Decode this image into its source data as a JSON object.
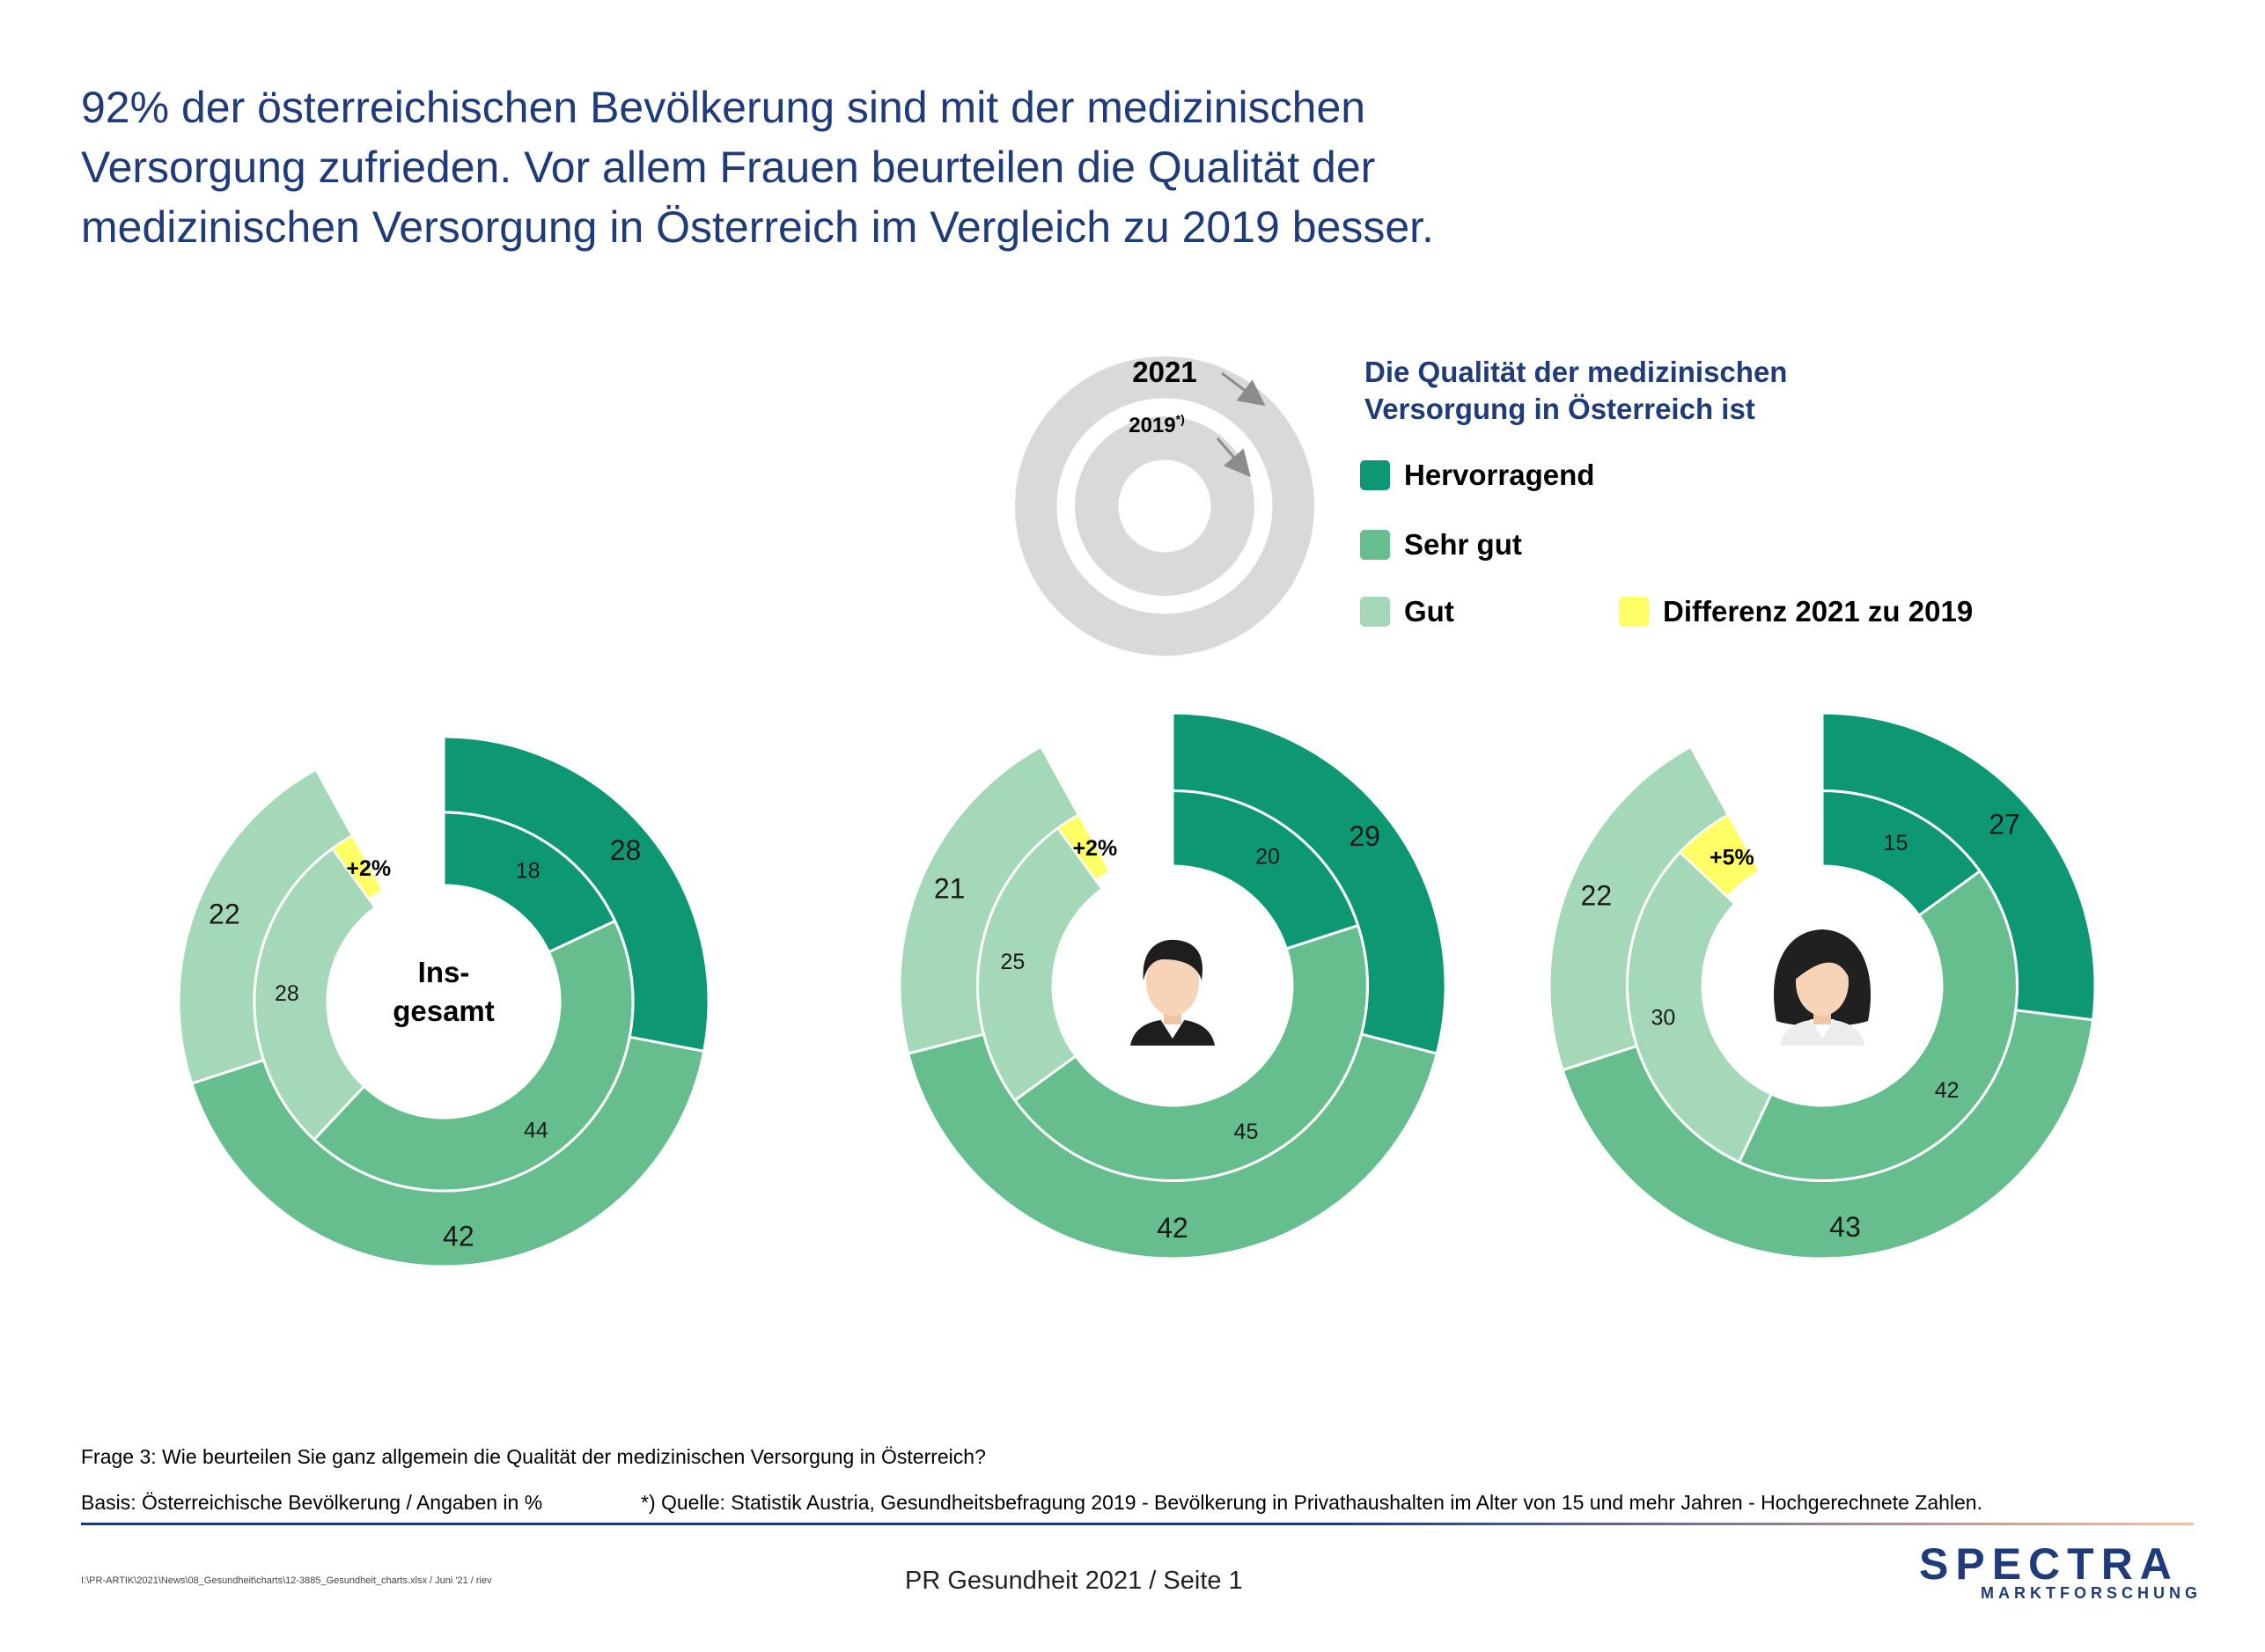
{
  "headline": {
    "line1": "92% der österreichischen Bevölkerung sind mit der medizinischen",
    "line2": "Versorgung zufrieden. Vor allem Frauen beurteilen die Qualität der",
    "line3": "medizinischen Versorgung in Österreich im Vergleich zu 2019 besser."
  },
  "key": {
    "outer_label": "2021",
    "inner_label": "2019",
    "inner_sup": "*)"
  },
  "legend": {
    "title_line1": "Die Qualität der medizinischen",
    "title_line2": "Versorgung in Österreich ist",
    "items": [
      {
        "label": "Hervorragend",
        "color": "#0d9873"
      },
      {
        "label": "Sehr gut",
        "color": "#66be8e"
      },
      {
        "label": "Gut",
        "color": "#a4d8b8"
      },
      {
        "label": "Differenz 2021 zu 2019",
        "color": "#ffff66"
      }
    ]
  },
  "colors": {
    "hervorragend": "#0d9873",
    "sehr_gut": "#66be8e",
    "gut": "#a4d8b8",
    "differenz": "#ffff66",
    "key_grey": "#d9d9d9",
    "navy": "#1f3b79"
  },
  "chart_data": [
    {
      "type": "donut",
      "center_label_line1": "Ins-",
      "center_label_line2": "gesamt",
      "categories": [
        "Hervorragend",
        "Sehr gut",
        "Gut"
      ],
      "series": [
        {
          "name": "2021",
          "values": [
            28,
            42,
            22
          ]
        },
        {
          "name": "2019",
          "values": [
            18,
            44,
            28
          ]
        }
      ],
      "difference_label": "+2%"
    },
    {
      "type": "donut",
      "center_icon": "male-avatar-icon",
      "categories": [
        "Hervorragend",
        "Sehr gut",
        "Gut"
      ],
      "series": [
        {
          "name": "2021",
          "values": [
            29,
            42,
            21
          ]
        },
        {
          "name": "2019",
          "values": [
            20,
            45,
            25
          ]
        }
      ],
      "difference_label": "+2%"
    },
    {
      "type": "donut",
      "center_icon": "female-avatar-icon",
      "categories": [
        "Hervorragend",
        "Sehr gut",
        "Gut"
      ],
      "series": [
        {
          "name": "2021",
          "values": [
            27,
            43,
            22
          ]
        },
        {
          "name": "2019",
          "values": [
            15,
            42,
            30
          ]
        }
      ],
      "difference_label": "+5%"
    }
  ],
  "footer": {
    "question": "Frage 3: Wie beurteilen Sie ganz allgemein die Qualität der medizinischen Versorgung in Österreich?",
    "basis": "Basis: Österreichische Bevölkerung / Angaben in %",
    "source": "*) Quelle: Statistik Austria, Gesundheitsbefragung 2019 - Bevölkerung in Privathaushalten im Alter von 15 und mehr Jahren - Hochgerechnete Zahlen.",
    "path": "I:\\PR-ARTIK\\2021\\News\\08_Gesundheit\\charts\\12-3885_Gesundheit_charts.xlsx  / Juni '21 / riev",
    "page": "PR Gesundheit 2021  /  Seite  1"
  },
  "logo": {
    "main": "SPECTRA",
    "sub": "MARKTFORSCHUNG"
  }
}
